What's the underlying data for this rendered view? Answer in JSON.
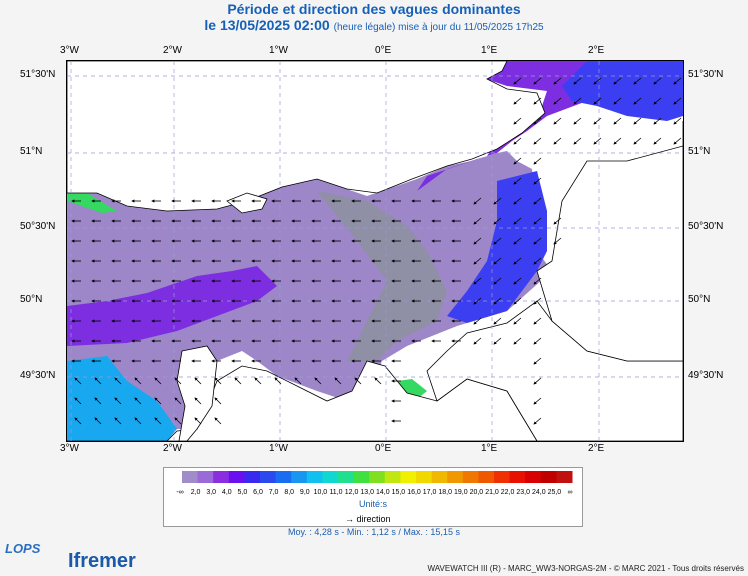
{
  "title": "Période et direction des vagues dominantes",
  "subtitle_main": "le 13/05/2025 02:00",
  "subtitle_note": "(heure légale) mise à jour du 11/05/2025 17h25",
  "map": {
    "lon_labels": [
      "3°W",
      "2°W",
      "1°W",
      "0°E",
      "1°E",
      "2°E"
    ],
    "lat_labels": [
      "51°30'N",
      "51°N",
      "50°30'N",
      "50°N",
      "49°30'N"
    ]
  },
  "colorbar": {
    "ticks": [
      "-∞",
      "2,0",
      "3,0",
      "4,0",
      "5,0",
      "6,0",
      "7,0",
      "8,0",
      "9,0",
      "10,0",
      "11,0",
      "12,0",
      "13,0",
      "14,0",
      "15,0",
      "16,0",
      "17,0",
      "18,0",
      "19,0",
      "20,0",
      "21,0",
      "22,0",
      "23,0",
      "24,0",
      "25,0",
      "∞"
    ],
    "colors": [
      "#a08cc8",
      "#9a6ad8",
      "#8a2ee0",
      "#6a10f0",
      "#3a2af0",
      "#2a4af0",
      "#1a6cf0",
      "#1896f0",
      "#10c0f0",
      "#10d8d0",
      "#20e090",
      "#40e040",
      "#80e020",
      "#c0e810",
      "#f0f000",
      "#f0d800",
      "#f0b800",
      "#f09800",
      "#f07800",
      "#f05800",
      "#f03000",
      "#e81000",
      "#d80000",
      "#c00000",
      "#c01010"
    ],
    "unit": "Unité:s"
  },
  "direction_legend": "direction",
  "stats": "Moy. : 4,28 s  -  Min. : 1,12 s / Max. : 15,15 s",
  "footer": "WAVEWATCH III (R) - MARC_WW3-NORGAS-2M - © MARC 2021 - Tous droits réservés",
  "logos": {
    "lops": "LOPS",
    "ifremer": "Ifremer"
  }
}
